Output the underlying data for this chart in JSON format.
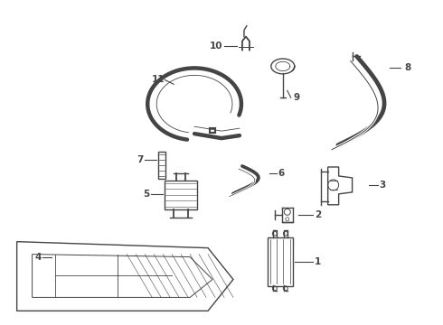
{
  "bg_color": "#ffffff",
  "line_color": "#444444",
  "label_color": "#111111",
  "fig_width": 4.9,
  "fig_height": 3.6,
  "dpi": 100,
  "lw_hose": 2.2,
  "lw_part": 1.0,
  "label_fs": 7.5
}
